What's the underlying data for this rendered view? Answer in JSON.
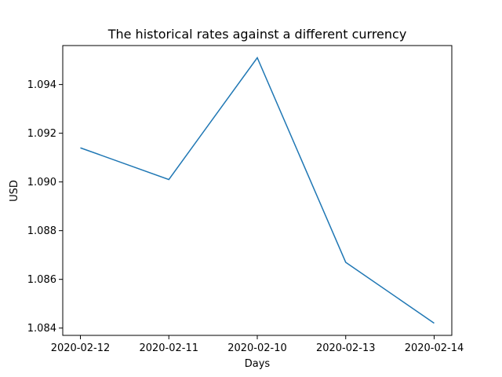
{
  "chart_data": {
    "type": "line",
    "title": "The historical rates against a different currency",
    "xlabel": "Days",
    "ylabel": "USD",
    "categories": [
      "2020-02-12",
      "2020-02-11",
      "2020-02-10",
      "2020-02-13",
      "2020-02-14"
    ],
    "series": [
      {
        "values": [
          1.0914,
          1.0901,
          1.0951,
          1.0867,
          1.0842
        ],
        "color": "#1f77b4"
      }
    ],
    "ylim": [
      1.0837,
      1.0956
    ],
    "yticks": [
      "1.084",
      "1.086",
      "1.088",
      "1.090",
      "1.092",
      "1.094"
    ],
    "grid": false
  }
}
